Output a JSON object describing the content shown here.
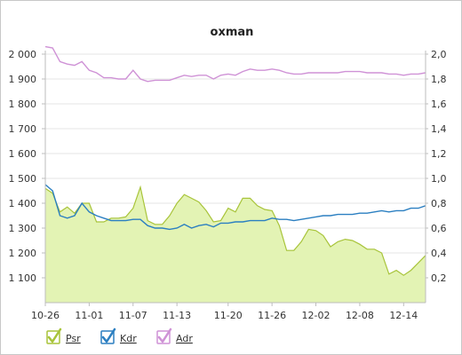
{
  "chart_data": {
    "type": "area",
    "title": "oxman",
    "x_labels": [
      "10-26",
      "11-01",
      "11-07",
      "11-13",
      "11-20",
      "11-26",
      "12-02",
      "12-08",
      "12-14"
    ],
    "x_label_index": [
      0,
      6,
      12,
      18,
      25,
      31,
      37,
      43,
      49
    ],
    "y_left": {
      "range": [
        1000,
        2000
      ],
      "ticks": [
        "2 000",
        "1 900",
        "1 800",
        "1 700",
        "1 600",
        "1 500",
        "1 400",
        "1 300",
        "1 200",
        "1 100"
      ],
      "tick_values": [
        2000,
        1900,
        1800,
        1700,
        1600,
        1500,
        1400,
        1300,
        1200,
        1100
      ]
    },
    "y_right": {
      "range": [
        0,
        2.0
      ],
      "ticks": [
        "2,0",
        "1,8",
        "1,6",
        "1,4",
        "1,2",
        "1,0",
        "0,8",
        "0,6",
        "0,4",
        "0,2"
      ],
      "tick_values": [
        2.0,
        1.8,
        1.6,
        1.4,
        1.2,
        1.0,
        0.8,
        0.6,
        0.4,
        0.2
      ]
    },
    "grid": true,
    "legend_position": "bottom-left",
    "series": [
      {
        "name": "Psr",
        "kind": "area",
        "axis": "left",
        "color": "#a8c43a",
        "fill": "#e3f3b4",
        "values": [
          1460,
          1440,
          1365,
          1385,
          1360,
          1400,
          1400,
          1325,
          1325,
          1340,
          1340,
          1345,
          1380,
          1465,
          1330,
          1315,
          1315,
          1350,
          1400,
          1435,
          1420,
          1405,
          1370,
          1325,
          1330,
          1380,
          1365,
          1420,
          1420,
          1390,
          1375,
          1370,
          1310,
          1210,
          1210,
          1245,
          1295,
          1290,
          1270,
          1225,
          1245,
          1255,
          1250,
          1235,
          1215,
          1215,
          1200,
          1115,
          1130,
          1110,
          1130,
          1160,
          1190
        ]
      },
      {
        "name": "Kdr",
        "kind": "line",
        "axis": "right",
        "color": "#2b7fc1",
        "values": [
          0.95,
          0.9,
          0.7,
          0.68,
          0.7,
          0.8,
          0.73,
          0.7,
          0.68,
          0.66,
          0.66,
          0.66,
          0.67,
          0.67,
          0.62,
          0.6,
          0.6,
          0.59,
          0.6,
          0.63,
          0.6,
          0.62,
          0.63,
          0.61,
          0.64,
          0.64,
          0.65,
          0.65,
          0.66,
          0.66,
          0.66,
          0.68,
          0.67,
          0.67,
          0.66,
          0.67,
          0.68,
          0.69,
          0.7,
          0.7,
          0.71,
          0.71,
          0.71,
          0.72,
          0.72,
          0.73,
          0.74,
          0.73,
          0.74,
          0.74,
          0.76,
          0.76,
          0.78
        ]
      },
      {
        "name": "Adr",
        "kind": "line",
        "axis": "right",
        "color": "#cf92d6",
        "values": [
          2.06,
          2.05,
          1.94,
          1.92,
          1.91,
          1.94,
          1.87,
          1.85,
          1.81,
          1.81,
          1.8,
          1.8,
          1.87,
          1.8,
          1.78,
          1.79,
          1.79,
          1.79,
          1.81,
          1.83,
          1.82,
          1.83,
          1.83,
          1.8,
          1.83,
          1.84,
          1.83,
          1.86,
          1.88,
          1.87,
          1.87,
          1.88,
          1.87,
          1.85,
          1.84,
          1.84,
          1.85,
          1.85,
          1.85,
          1.85,
          1.85,
          1.86,
          1.86,
          1.86,
          1.85,
          1.85,
          1.85,
          1.84,
          1.84,
          1.83,
          1.84,
          1.84,
          1.85
        ]
      }
    ]
  },
  "legend": [
    {
      "label": "Psr",
      "color": "#a8c43a"
    },
    {
      "label": "Kdr",
      "color": "#2b7fc1"
    },
    {
      "label": "Adr",
      "color": "#cf92d6"
    }
  ]
}
